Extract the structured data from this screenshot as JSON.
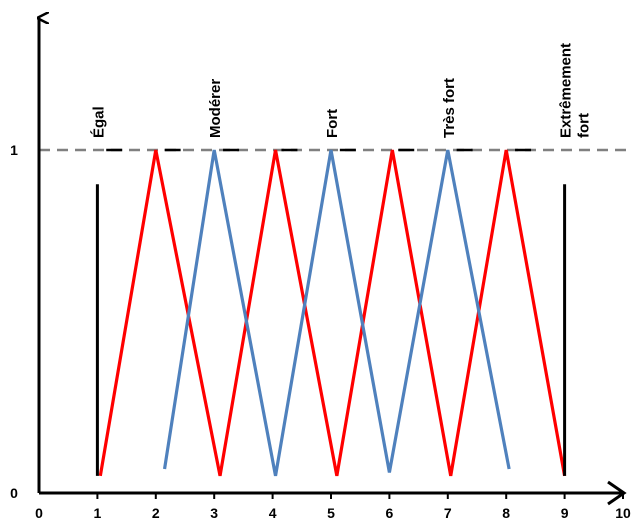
{
  "chart_data": {
    "type": "line",
    "title": "",
    "xlabel": "",
    "ylabel": "",
    "xlim": [
      0,
      10
    ],
    "ylim": [
      0,
      1
    ],
    "x_ticks": [
      "0",
      "1",
      "2",
      "3",
      "4",
      "5",
      "6",
      "7",
      "8",
      "9",
      "10"
    ],
    "y_ticks": [
      "0",
      "1"
    ],
    "grid": false,
    "legend": "none",
    "reference_line": {
      "y": 1,
      "style": "dashed",
      "color": "#808080"
    },
    "category_labels": [
      {
        "x": 1,
        "text": "Égal"
      },
      {
        "x": 3,
        "text": "Modérer"
      },
      {
        "x": 5,
        "text": "Fort"
      },
      {
        "x": 7,
        "text": "Très fort"
      },
      {
        "x": 9,
        "text": "Extrêmement fort"
      }
    ],
    "boundary_lines": [
      {
        "x": 1,
        "y": [
          0.05,
          0.9
        ],
        "color": "#000000"
      },
      {
        "x": 9,
        "y": [
          0.05,
          0.9
        ],
        "color": "#000000"
      }
    ],
    "series": [
      {
        "color": "#ff0000",
        "x": [
          1.05,
          2,
          3.1,
          4.05,
          5.1,
          6.05,
          7.05,
          8,
          9
        ],
        "y": [
          0.05,
          1,
          0.05,
          1,
          0.05,
          1,
          0.05,
          1,
          0.05
        ]
      },
      {
        "color": "#4f81bd",
        "x": [
          2.15,
          3,
          4.05,
          5,
          6,
          7,
          8.05
        ],
        "y": [
          0.07,
          1,
          0.05,
          1,
          0.06,
          1,
          0.07
        ]
      }
    ]
  }
}
